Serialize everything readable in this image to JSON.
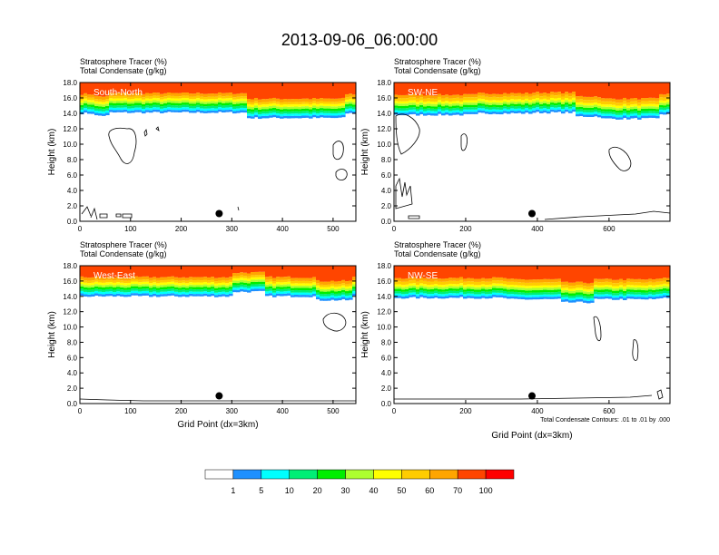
{
  "title": "2013-09-06_06:00:00",
  "colors": {
    "levels": [
      "#ffffff",
      "#1e90ff",
      "#00ffff",
      "#00ee76",
      "#00ee00",
      "#adff2f",
      "#ffff00",
      "#ffcc00",
      "#ffa500",
      "#ff4500",
      "#ff0000"
    ]
  },
  "chart_data": [
    {
      "type": "heatmap",
      "panel_label": "South-North",
      "header": [
        "Stratosphere Tracer   (%)",
        "Total Condensate   (g/kg)"
      ],
      "xlabel": "",
      "ylabel": "Height (km)",
      "xlim": [
        0,
        545
      ],
      "ylim": [
        0,
        18
      ],
      "x_ticks": [
        "0",
        "100",
        "200",
        "300",
        "400",
        "500"
      ],
      "y_ticks": [
        "0.0",
        "2.0",
        "4.0",
        "6.0",
        "8.0",
        "10.0",
        "12.0",
        "14.0",
        "16.0",
        "18.0"
      ],
      "tracer_bands_km": [
        14.0,
        14.3,
        14.6,
        14.9,
        15.2,
        15.5,
        15.8,
        16.1,
        16.5
      ],
      "marker_x": 275,
      "marker_y_km": 1.0
    },
    {
      "type": "heatmap",
      "panel_label": "SW-NE",
      "header": [
        "Stratosphere Tracer   (%)",
        "Total Condensate   (g/kg)"
      ],
      "xlabel": "",
      "ylabel": "Height (km)",
      "xlim": [
        0,
        770
      ],
      "ylim": [
        0,
        18
      ],
      "x_ticks": [
        "0",
        "200",
        "400",
        "600"
      ],
      "y_ticks": [
        "0.0",
        "2.0",
        "4.0",
        "6.0",
        "8.0",
        "10.0",
        "12.0",
        "14.0",
        "16.0",
        "18.0"
      ],
      "tracer_bands_km": [
        13.8,
        14.1,
        14.4,
        14.7,
        15.0,
        15.3,
        15.6,
        16.0,
        16.4
      ],
      "marker_x": 385,
      "marker_y_km": 1.0
    },
    {
      "type": "heatmap",
      "panel_label": "West-East",
      "header": [
        "Stratosphere Tracer   (%)",
        "Total Condensate   (g/kg)"
      ],
      "xlabel": "Grid Point (dx=3km)",
      "ylabel": "Height (km)",
      "xlim": [
        0,
        545
      ],
      "ylim": [
        0,
        18
      ],
      "x_ticks": [
        "0",
        "100",
        "200",
        "300",
        "400",
        "500"
      ],
      "y_ticks": [
        "0.0",
        "2.0",
        "4.0",
        "6.0",
        "8.0",
        "10.0",
        "12.0",
        "14.0",
        "16.0",
        "18.0"
      ],
      "tracer_bands_km": [
        14.0,
        14.3,
        14.6,
        14.9,
        15.2,
        15.5,
        15.8,
        16.1,
        16.5
      ],
      "marker_x": 275,
      "marker_y_km": 1.0
    },
    {
      "type": "heatmap",
      "panel_label": "NW-SE",
      "header": [
        "Stratosphere Tracer   (%)",
        "Total Condensate   (g/kg)"
      ],
      "xlabel": "Grid Point (dx=3km)",
      "ylabel": "Height (km)",
      "xlim": [
        0,
        770
      ],
      "ylim": [
        0,
        18
      ],
      "x_ticks": [
        "0",
        "200",
        "400",
        "600"
      ],
      "y_ticks": [
        "0.0",
        "2.0",
        "4.0",
        "6.0",
        "8.0",
        "10.0",
        "12.0",
        "14.0",
        "16.0",
        "18.0"
      ],
      "tracer_bands_km": [
        13.8,
        14.1,
        14.4,
        14.7,
        15.0,
        15.3,
        15.6,
        16.0,
        16.4
      ],
      "marker_x": 385,
      "marker_y_km": 1.0,
      "footnote": "Total Condensate Contours: .01 to .01 by .000"
    }
  ],
  "colorbar": {
    "labels": [
      "1",
      "5",
      "10",
      "20",
      "30",
      "40",
      "50",
      "60",
      "70",
      "100"
    ]
  }
}
